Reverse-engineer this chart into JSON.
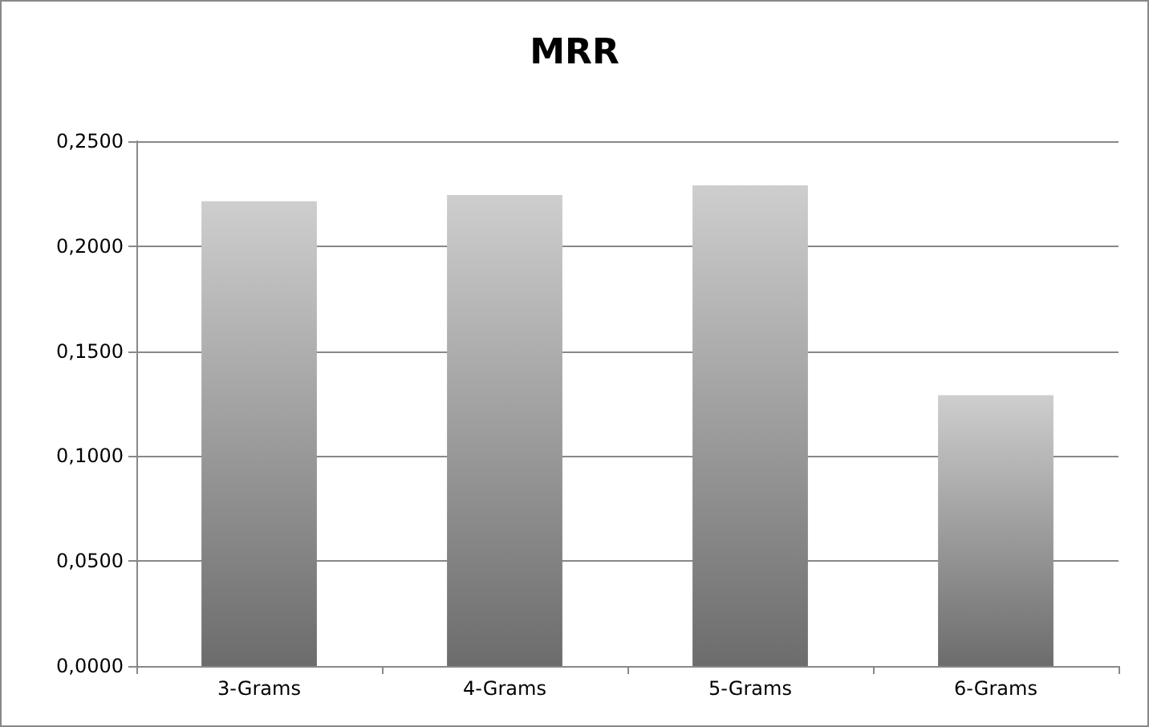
{
  "chart_data": {
    "type": "bar",
    "title": "MRR",
    "categories": [
      "3-Grams",
      "4-Grams",
      "5-Grams",
      "6-Grams"
    ],
    "values": [
      0.2214,
      0.2244,
      0.229,
      0.129
    ],
    "color": "#a6a6a6",
    "ylim": [
      0,
      0.25
    ],
    "yticks": [
      {
        "value": 0,
        "label": "0,0000"
      },
      {
        "value": 0.05,
        "label": "0,0500"
      },
      {
        "value": 0.1,
        "label": "0,1000"
      },
      {
        "value": 0.15,
        "label": "0,1500"
      },
      {
        "value": 0.2,
        "label": "0,2000"
      },
      {
        "value": 0.25,
        "label": "0,2500"
      }
    ],
    "grid": "y"
  }
}
